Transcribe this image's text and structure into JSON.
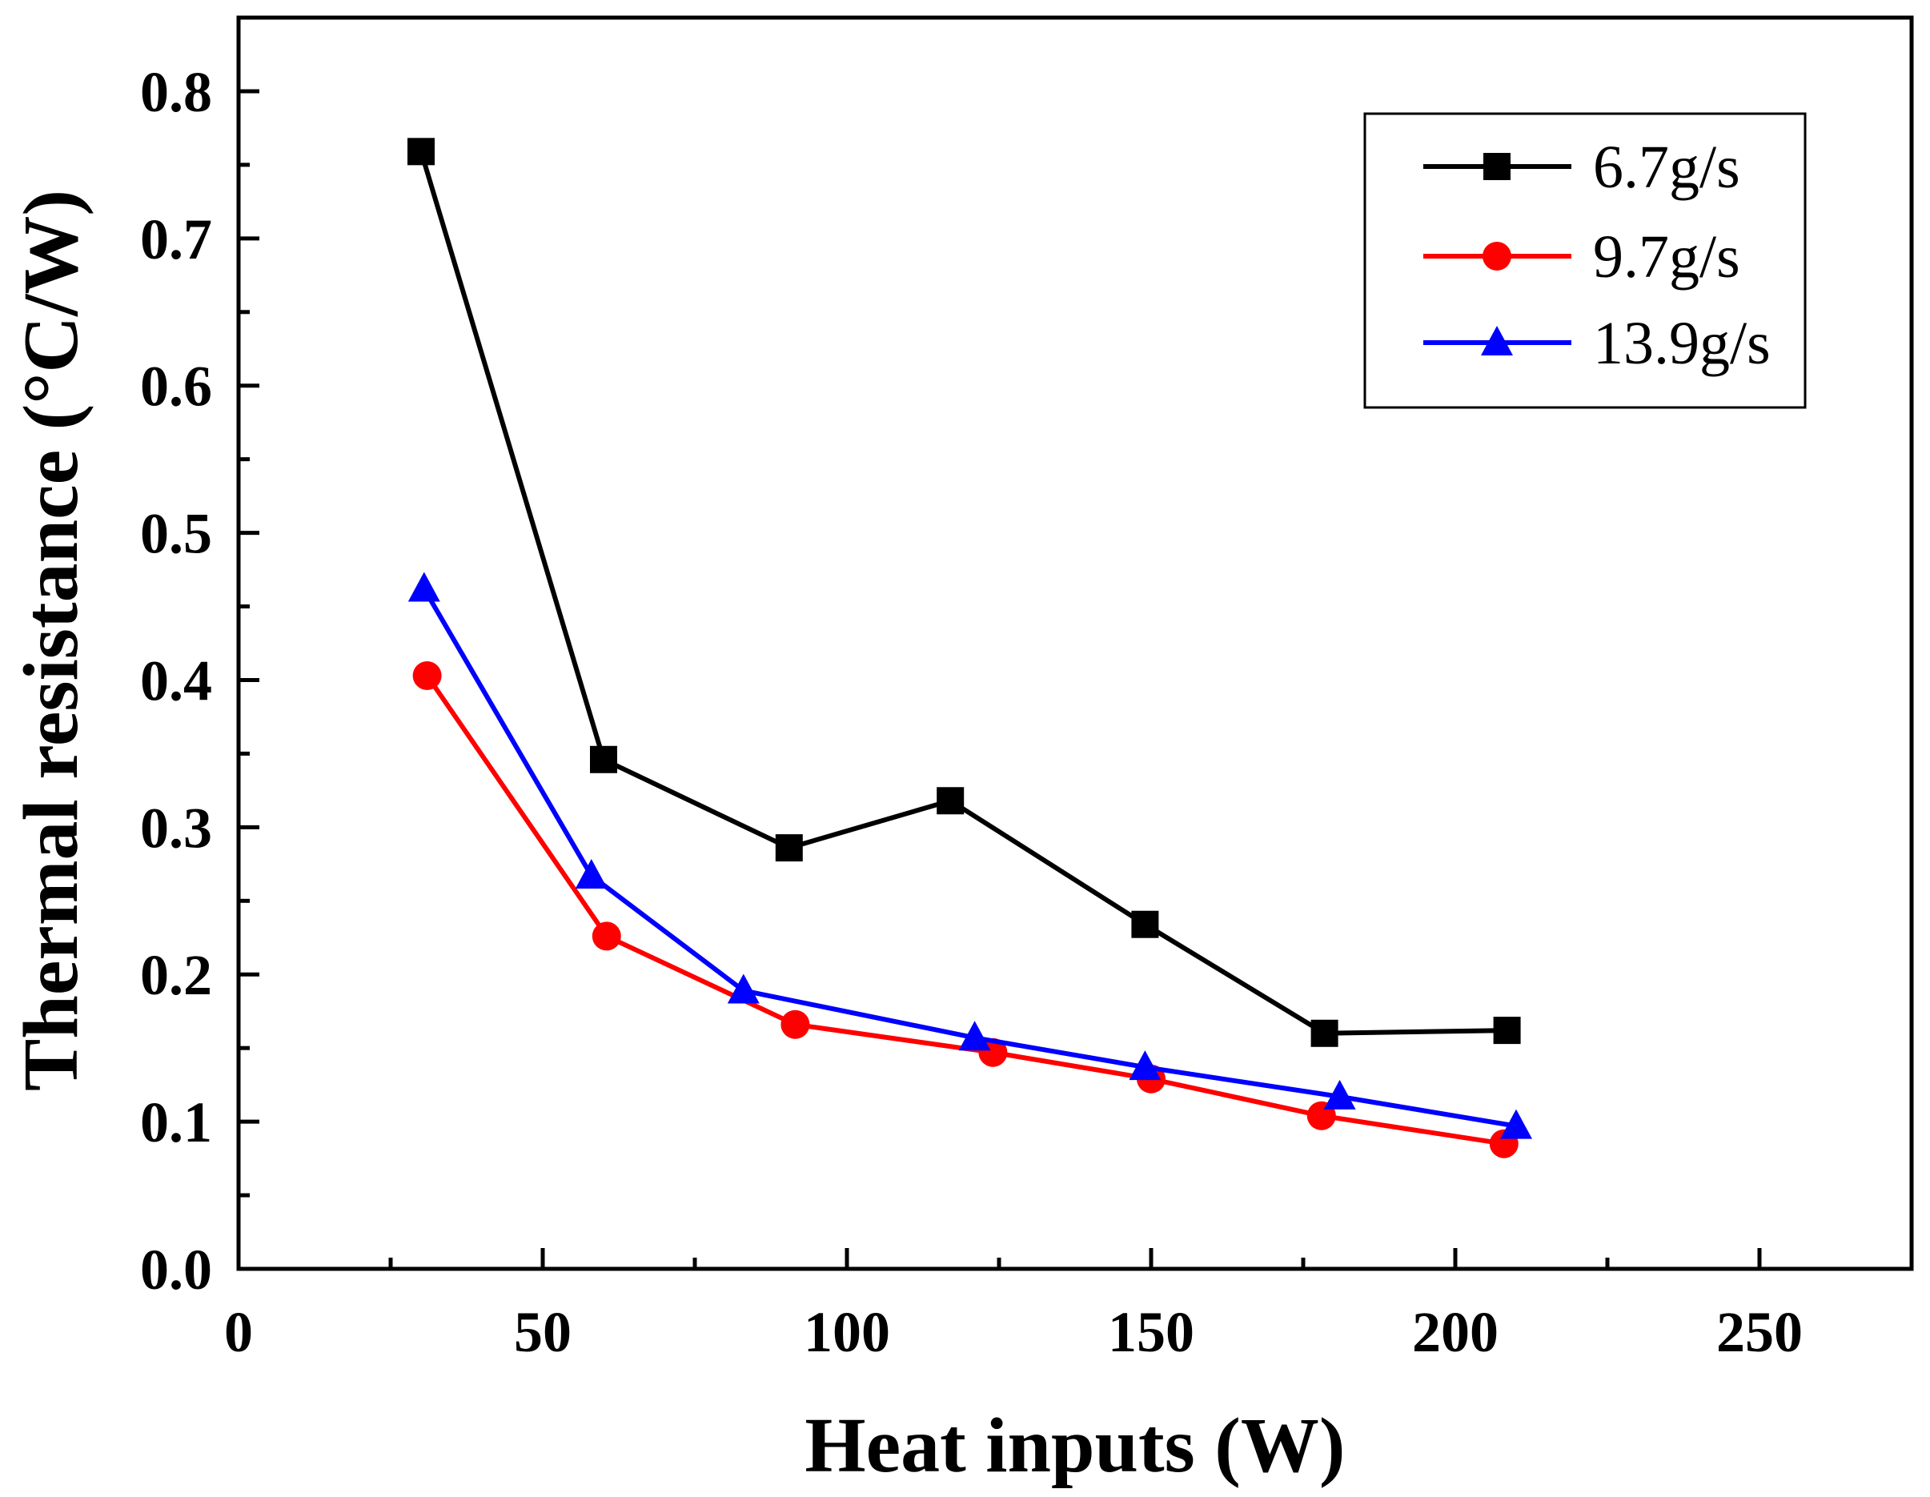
{
  "chart_data": {
    "type": "line",
    "xlabel": "Heat inputs (W)",
    "ylabel": "Thermal resistance (°C/W)",
    "xlim": [
      0,
      275
    ],
    "ylim": [
      0,
      0.85
    ],
    "x_ticks": [
      0,
      50,
      100,
      150,
      200,
      250
    ],
    "x_tick_labels": [
      "0",
      "50",
      "100",
      "150",
      "200",
      "250"
    ],
    "x_minor_ticks": [
      25,
      75,
      125,
      175,
      225
    ],
    "y_ticks": [
      0.0,
      0.1,
      0.2,
      0.3,
      0.4,
      0.5,
      0.6,
      0.7,
      0.8
    ],
    "y_tick_labels": [
      "0.0",
      "0.1",
      "0.2",
      "0.3",
      "0.4",
      "0.5",
      "0.6",
      "0.7",
      "0.8"
    ],
    "y_minor_ticks": [
      0.05,
      0.15,
      0.25,
      0.35,
      0.45,
      0.55,
      0.65,
      0.75
    ],
    "grid": false,
    "legend_position": "top-right",
    "series": [
      {
        "name": "6.7g/s",
        "color": "#000000",
        "marker": "square",
        "points": [
          [
            30,
            0.759
          ],
          [
            60,
            0.346
          ],
          [
            90.5,
            0.286
          ],
          [
            117,
            0.318
          ],
          [
            149,
            0.234
          ],
          [
            178.5,
            0.16
          ],
          [
            208.5,
            0.162
          ]
        ]
      },
      {
        "name": "9.7g/s",
        "color": "#ff0000",
        "marker": "circle",
        "points": [
          [
            31,
            0.403
          ],
          [
            60.5,
            0.226
          ],
          [
            91.5,
            0.166
          ],
          [
            124,
            0.147
          ],
          [
            150,
            0.129
          ],
          [
            178,
            0.104
          ],
          [
            208,
            0.085
          ]
        ]
      },
      {
        "name": "13.9g/s",
        "color": "#0000ff",
        "marker": "triangle",
        "points": [
          [
            30.5,
            0.462
          ],
          [
            58,
            0.267
          ],
          [
            83,
            0.189
          ],
          [
            121,
            0.157
          ],
          [
            149,
            0.137
          ],
          [
            181,
            0.117
          ],
          [
            210,
            0.097
          ]
        ]
      }
    ]
  }
}
